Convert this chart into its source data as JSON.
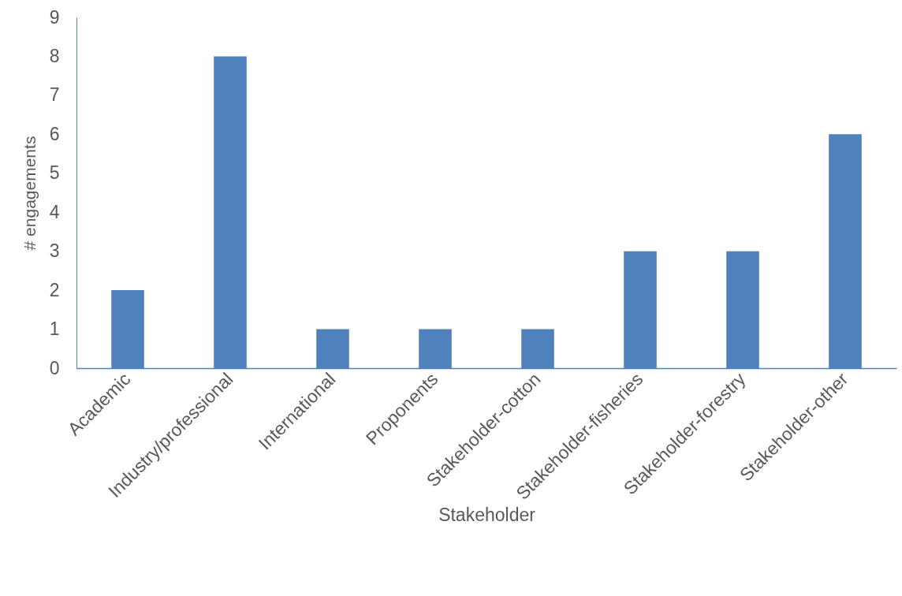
{
  "chart_data": {
    "type": "bar",
    "xlabel": "Stakeholder",
    "ylabel": "# engagements",
    "categories": [
      "Academic",
      "Industry/professional",
      "International",
      "Proponents",
      "Stakeholder-cotton",
      "Stakeholder-fisheries",
      "Stakeholder-forestry",
      "Stakeholder-other"
    ],
    "values": [
      2,
      8,
      1,
      1,
      1,
      3,
      3,
      6
    ],
    "color": "#4f81bd",
    "ylim": [
      0,
      9
    ],
    "yticks": [
      0,
      1,
      2,
      3,
      4,
      5,
      6,
      7,
      8,
      9
    ],
    "grid": false
  }
}
